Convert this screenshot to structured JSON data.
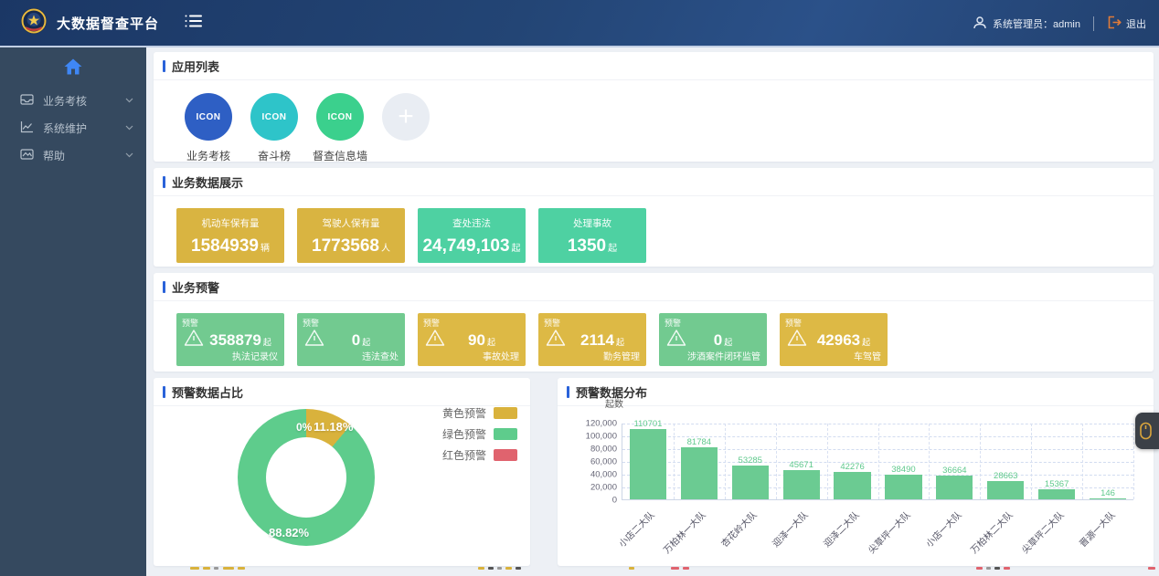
{
  "header": {
    "title": "大数据督查平台",
    "user_label": "系统管理员：admin",
    "logout_label": "退出"
  },
  "sidebar": {
    "items": [
      {
        "label": "业务考核",
        "icon": "inbox-icon"
      },
      {
        "label": "系统维护",
        "icon": "line-chart-icon"
      },
      {
        "label": "帮助",
        "icon": "image-icon"
      }
    ]
  },
  "app_list": {
    "title": "应用列表",
    "add_label": "+",
    "apps": [
      {
        "label": "业务考核",
        "icon_text": "ICON",
        "color": "#2e5fc4"
      },
      {
        "label": "奋斗榜",
        "icon_text": "ICON",
        "color": "#2ec4c9"
      },
      {
        "label": "督查信息墙",
        "icon_text": "ICON",
        "color": "#3bd08d"
      }
    ]
  },
  "business_data": {
    "title": "业务数据展示",
    "cards": [
      {
        "label": "机动车保有量",
        "value": "1584939",
        "unit": "辆",
        "color": "#d9b441"
      },
      {
        "label": "驾驶人保有量",
        "value": "1773568",
        "unit": "人",
        "color": "#d9b441"
      },
      {
        "label": "查处违法",
        "value": "24,749,103",
        "unit": "起",
        "color": "#4ed1a2"
      },
      {
        "label": "处理事故",
        "value": "1350",
        "unit": "起",
        "color": "#4ed1a2"
      }
    ]
  },
  "business_warning": {
    "title": "业务预警",
    "badge_label": "预警",
    "unit": "起",
    "cards": [
      {
        "label": "执法记录仪",
        "value": "358879",
        "color": "#72ca90"
      },
      {
        "label": "违法查处",
        "value": "0",
        "color": "#72ca90"
      },
      {
        "label": "事故处理",
        "value": "90",
        "color": "#ddb945"
      },
      {
        "label": "勤务管理",
        "value": "2114",
        "color": "#ddb945"
      },
      {
        "label": "涉酒案件闭环监管",
        "value": "0",
        "color": "#72ca90"
      },
      {
        "label": "车驾管",
        "value": "42963",
        "color": "#ddb945"
      }
    ]
  },
  "chart_data": [
    {
      "type": "pie",
      "donut": true,
      "title": "预警数据占比",
      "labels": [
        "黄色预警",
        "绿色预警",
        "红色预警"
      ],
      "values": [
        11.18,
        88.82,
        0
      ],
      "value_labels": [
        "11.18%",
        "88.82%",
        "0%"
      ],
      "colors": [
        "#d9b23c",
        "#5ecc8c",
        "#e0636e"
      ],
      "legend_position": "top-right"
    },
    {
      "type": "bar",
      "title": "预警数据分布",
      "ylabel": "起数",
      "categories": [
        "小店二大队",
        "万柏林一大队",
        "杏花岭大队",
        "迎泽一大队",
        "迎泽二大队",
        "尖草坪一大队",
        "小店一大队",
        "万柏林二大队",
        "尖草坪二大队",
        "晋源一大队"
      ],
      "values": [
        110701,
        81784,
        53285,
        45671,
        42276,
        38490,
        36664,
        28663,
        15367,
        146
      ],
      "ylim": [
        0,
        120000
      ],
      "yticks": [
        "0",
        "20,000",
        "40,000",
        "60,000",
        "80,000",
        "100,000",
        "120,000"
      ],
      "bar_color": "#6bcb92",
      "label_color": "#5fc98c",
      "grid": true
    }
  ]
}
